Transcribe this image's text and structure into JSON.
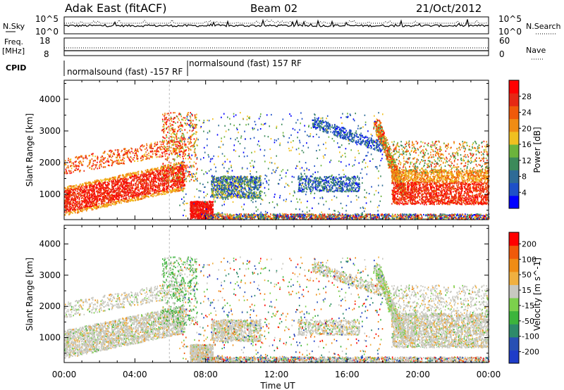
{
  "header": {
    "station": "Adak East (fitACF)",
    "beam": "Beam 02",
    "date": "21/Oct/2012"
  },
  "top_panels": {
    "nsky_label": "N.Sky",
    "nsky_ticks": [
      "10^5",
      "10^0"
    ],
    "nsearch_label": "N.Search",
    "nsearch_ticks": [
      "10^5",
      "10^0"
    ],
    "freq_label": "Freq.",
    "freq_unit": "[MHz]",
    "freq_ticks": [
      "18",
      "8"
    ],
    "nave_label": "Nave",
    "nave_ticks": [
      "60",
      "0"
    ],
    "cpid_label": "CPID",
    "cpid_text_1": "normalsound (fast) 157 RF",
    "cpid_text_2": "normalsound (fast) -157 RF"
  },
  "chart_data": [
    {
      "type": "heatmap",
      "title": "",
      "xlabel": "",
      "ylabel": "Slant Range [km]",
      "x_ticks": [
        "00:00",
        "04:00",
        "08:00",
        "12:00",
        "16:00",
        "20:00",
        "00:00"
      ],
      "y_ticks": [
        "1000",
        "2000",
        "3000",
        "4000"
      ],
      "ylim": [
        200,
        4600
      ],
      "colorbar_label": "Power [dB]",
      "colorbar_ticks": [
        "4",
        "8",
        "12",
        "16",
        "20",
        "24",
        "28"
      ],
      "colorbar_colors": [
        "#0000ff",
        "#1e50c8",
        "#2e6b96",
        "#3c8a5a",
        "#6cb43c",
        "#f0c020",
        "#f08c14",
        "#f05a0a",
        "#e62814",
        "#ff0000"
      ]
    },
    {
      "type": "heatmap",
      "title": "",
      "xlabel": "Time UT",
      "ylabel": "Slant Range [km]",
      "x_ticks": [
        "00:00",
        "04:00",
        "08:00",
        "12:00",
        "16:00",
        "20:00",
        "00:00"
      ],
      "y_ticks": [
        "1000",
        "2000",
        "3000",
        "4000"
      ],
      "ylim": [
        200,
        4600
      ],
      "colorbar_label": "Velocity [m s^-1]",
      "colorbar_ticks": [
        "200",
        "100",
        "50",
        "15",
        "-15",
        "-50",
        "-100",
        "-200"
      ],
      "colorbar_colors": [
        "#1e3cc8",
        "#2850b4",
        "#2e8a6a",
        "#3cb43c",
        "#7cd04c",
        "#c8c8c0",
        "#f0b040",
        "#f08c14",
        "#f05a0a",
        "#ff0000"
      ]
    }
  ]
}
